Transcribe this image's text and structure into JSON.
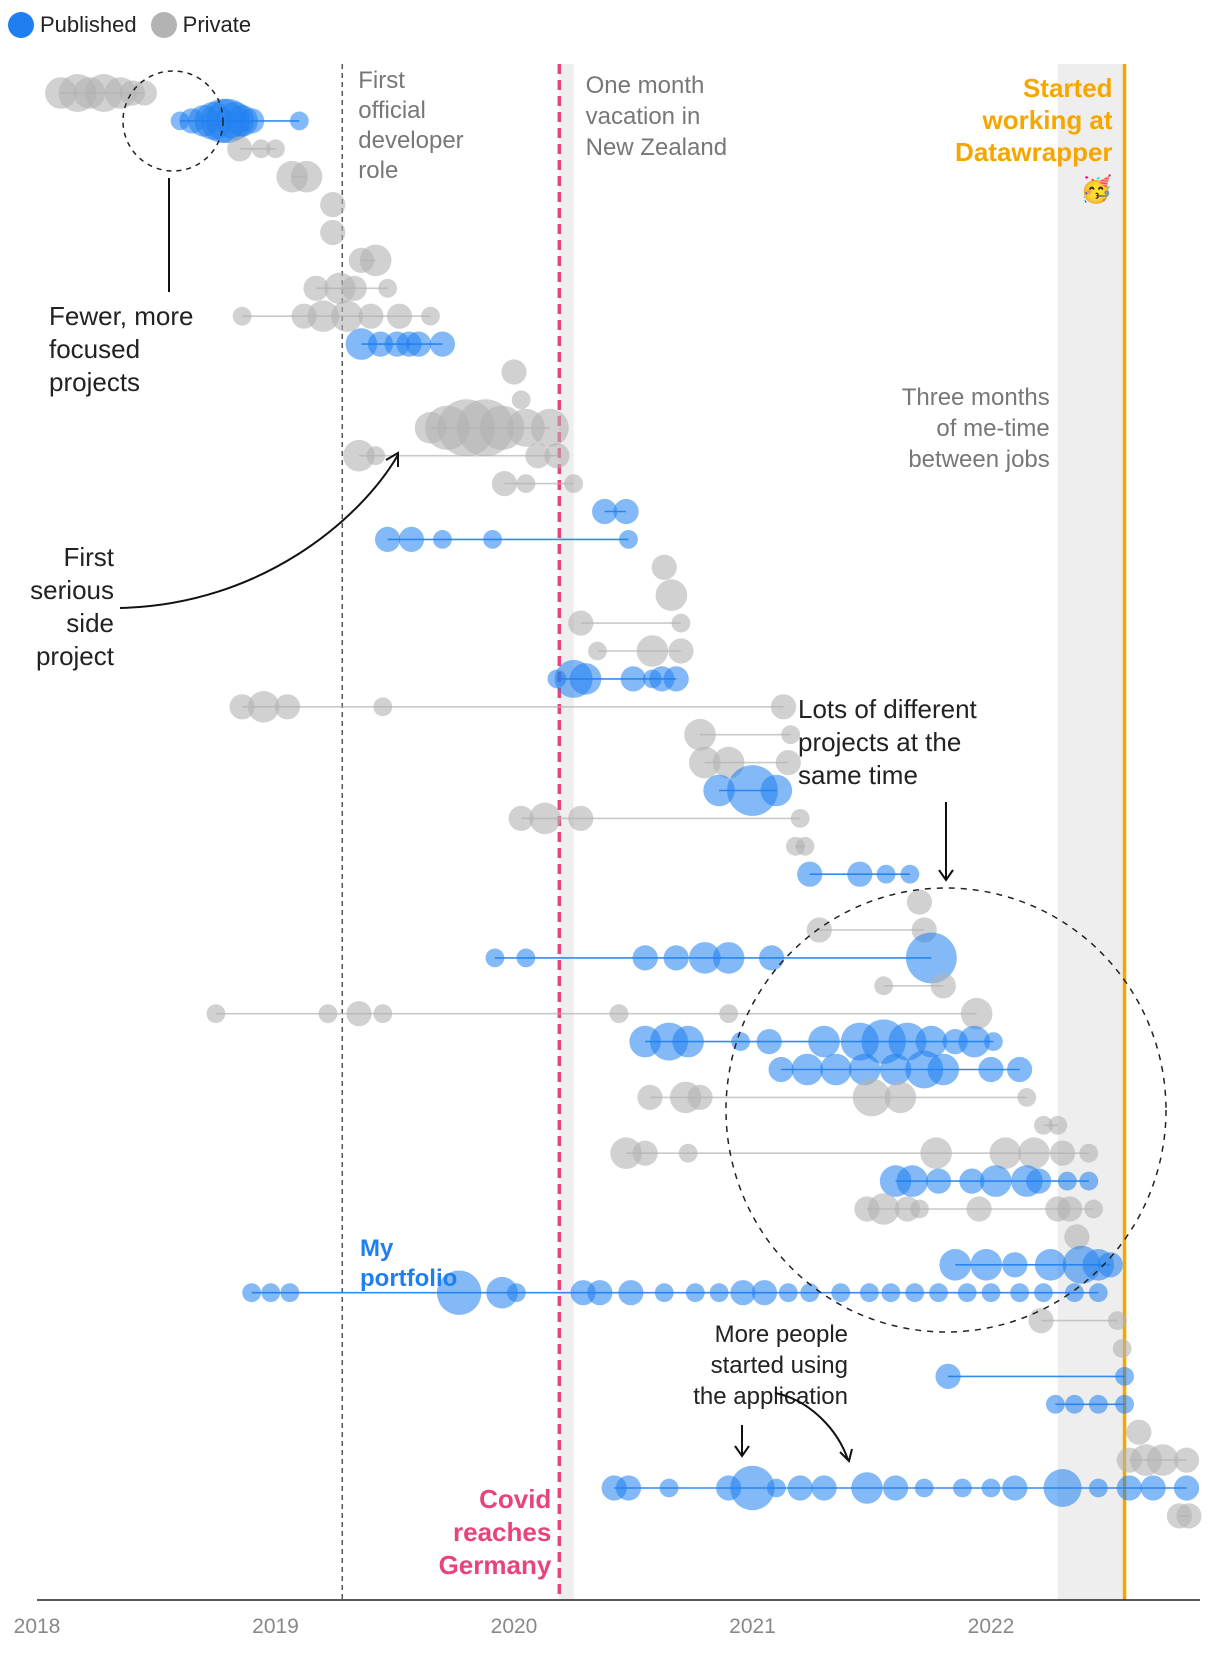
{
  "colors": {
    "published": "#1f7ff0",
    "private": "#b3b3b3",
    "covid": "#e8437a",
    "datawrapper": "#f7a600",
    "text_gray": "#777777",
    "text_dark": "#222222",
    "shade": "#eeeeee"
  },
  "legend": [
    {
      "label": "Published",
      "color": "#1f7ff0"
    },
    {
      "label": "Private",
      "color": "#b3b3b3"
    }
  ],
  "chart_data": {
    "type": "scatter",
    "x_ticks": [
      "2018",
      "2019",
      "2020",
      "2021",
      "2022"
    ],
    "x_range": [
      2018.0,
      2022.92
    ],
    "event_lines": [
      {
        "x": 2019.28,
        "style": "dashed-gray",
        "lines": [
          "First",
          "official",
          "developer",
          "role"
        ]
      },
      {
        "x": 2020.19,
        "style": "dashed-pink",
        "lines": [
          "Covid",
          "reaches",
          "Germany"
        ]
      },
      {
        "x": 2022.56,
        "style": "solid-orange",
        "lines": [
          "Started",
          "working at",
          "Datawrapper",
          "🥳"
        ]
      }
    ],
    "shaded_periods": [
      {
        "from": 2020.19,
        "to": 2020.25,
        "lines": [
          "One month",
          "vacation in",
          "New Zealand"
        ]
      },
      {
        "from": 2022.28,
        "to": 2022.56,
        "lines": [
          "Three months",
          "of me-time",
          "between jobs"
        ]
      }
    ],
    "annotations": [
      {
        "lines": [
          "Fewer, more",
          "focused",
          "projects"
        ]
      },
      {
        "lines": [
          "First",
          "serious",
          "side",
          "project"
        ]
      },
      {
        "lines": [
          "Lots of different",
          "projects at the",
          "same time"
        ]
      },
      {
        "lines": [
          "My",
          "portfolio"
        ]
      },
      {
        "lines": [
          "More people",
          "started using",
          "the application"
        ]
      }
    ],
    "projects": [
      {
        "type": "private",
        "x": [
          2018.1,
          2018.17,
          2018.22,
          2018.28,
          2018.35,
          2018.4,
          2018.45
        ],
        "s": [
          4,
          5,
          4,
          5,
          4,
          3,
          3
        ]
      },
      {
        "type": "published",
        "x": [
          2018.6,
          2018.65,
          2018.7,
          2018.74,
          2018.78,
          2018.8,
          2018.83,
          2018.86,
          2018.9,
          2019.1
        ],
        "s": [
          2,
          3,
          4,
          5,
          6,
          6,
          5,
          4,
          3,
          2
        ]
      },
      {
        "type": "private",
        "x": [
          2018.85,
          2018.94,
          2019.0
        ],
        "s": [
          3,
          2,
          2
        ]
      },
      {
        "type": "private",
        "x": [
          2019.07,
          2019.13
        ],
        "s": [
          4,
          4
        ]
      },
      {
        "type": "private",
        "x": [
          2019.24
        ],
        "s": [
          3
        ]
      },
      {
        "type": "private",
        "x": [
          2019.24
        ],
        "s": [
          3
        ]
      },
      {
        "type": "private",
        "x": [
          2019.36,
          2019.42
        ],
        "s": [
          3,
          4
        ]
      },
      {
        "type": "private",
        "x": [
          2019.17,
          2019.27,
          2019.33,
          2019.47
        ],
        "s": [
          3,
          4,
          3,
          2
        ]
      },
      {
        "type": "private",
        "x": [
          2018.86,
          2019.12,
          2019.2,
          2019.3,
          2019.4,
          2019.52,
          2019.65
        ],
        "s": [
          2,
          3,
          4,
          4,
          3,
          3,
          2
        ]
      },
      {
        "type": "published",
        "x": [
          2019.36,
          2019.44,
          2019.51,
          2019.56,
          2019.6,
          2019.7
        ],
        "s": [
          4,
          3,
          3,
          3,
          3,
          3
        ]
      },
      {
        "type": "private",
        "x": [
          2020.0
        ],
        "s": [
          3
        ]
      },
      {
        "type": "private",
        "x": [
          2020.03
        ],
        "s": [
          2
        ]
      },
      {
        "type": "private",
        "x": [
          2019.65,
          2019.72,
          2019.8,
          2019.88,
          2019.95,
          2020.05,
          2020.15
        ],
        "s": [
          4,
          6,
          8,
          8,
          6,
          5,
          5
        ]
      },
      {
        "type": "private",
        "x": [
          2019.35,
          2019.42,
          2020.1,
          2020.18
        ],
        "s": [
          4,
          2,
          3,
          3
        ]
      },
      {
        "type": "private",
        "x": [
          2019.96,
          2020.05,
          2020.25
        ],
        "s": [
          3,
          2,
          2
        ]
      },
      {
        "type": "published",
        "x": [
          2020.38,
          2020.47
        ],
        "s": [
          3,
          3
        ]
      },
      {
        "type": "published",
        "x": [
          2019.47,
          2019.57,
          2019.7,
          2019.91,
          2020.48
        ],
        "s": [
          3,
          3,
          2,
          2,
          2
        ]
      },
      {
        "type": "private",
        "x": [
          2020.63
        ],
        "s": [
          3
        ]
      },
      {
        "type": "private",
        "x": [
          2020.66
        ],
        "s": [
          4
        ]
      },
      {
        "type": "private",
        "x": [
          2020.28,
          2020.7
        ],
        "s": [
          3,
          2
        ]
      },
      {
        "type": "private",
        "x": [
          2020.35,
          2020.58,
          2020.7
        ],
        "s": [
          2,
          4,
          3
        ]
      },
      {
        "type": "published",
        "x": [
          2020.18,
          2020.25,
          2020.3,
          2020.5,
          2020.58,
          2020.62,
          2020.68
        ],
        "s": [
          2,
          5,
          4,
          3,
          2,
          3,
          3
        ]
      },
      {
        "type": "private",
        "x": [
          2018.86,
          2018.95,
          2019.05,
          2019.45,
          2021.13
        ],
        "s": [
          3,
          4,
          3,
          2,
          3
        ]
      },
      {
        "type": "private",
        "x": [
          2020.78,
          2021.16
        ],
        "s": [
          4,
          2
        ]
      },
      {
        "type": "private",
        "x": [
          2020.8,
          2020.9,
          2021.15
        ],
        "s": [
          4,
          4,
          3
        ]
      },
      {
        "type": "published",
        "x": [
          2020.86,
          2021.0,
          2021.1
        ],
        "s": [
          4,
          7,
          4
        ]
      },
      {
        "type": "private",
        "x": [
          2020.03,
          2020.13,
          2020.28,
          2021.2
        ],
        "s": [
          3,
          4,
          3,
          2
        ]
      },
      {
        "type": "private",
        "x": [
          2021.18,
          2021.22
        ],
        "s": [
          2,
          2
        ]
      },
      {
        "type": "published",
        "x": [
          2021.24,
          2021.45,
          2021.56,
          2021.66
        ],
        "s": [
          3,
          3,
          2,
          2
        ]
      },
      {
        "type": "private",
        "x": [
          2021.7
        ],
        "s": [
          3
        ]
      },
      {
        "type": "private",
        "x": [
          2021.28,
          2021.72
        ],
        "s": [
          3,
          3
        ]
      },
      {
        "type": "published",
        "x": [
          2019.92,
          2020.05,
          2020.55,
          2020.68,
          2020.8,
          2020.9,
          2021.08,
          2021.75
        ],
        "s": [
          2,
          2,
          3,
          3,
          4,
          4,
          3,
          7
        ]
      },
      {
        "type": "private",
        "x": [
          2021.55,
          2021.8
        ],
        "s": [
          2,
          3
        ]
      },
      {
        "type": "private",
        "x": [
          2018.75,
          2019.22,
          2019.35,
          2019.45,
          2020.44,
          2020.9,
          2021.94
        ],
        "s": [
          2,
          2,
          3,
          2,
          2,
          2,
          4
        ]
      },
      {
        "type": "published",
        "x": [
          2020.55,
          2020.65,
          2020.73,
          2020.95,
          2021.07,
          2021.3,
          2021.45,
          2021.55,
          2021.65,
          2021.75,
          2021.85,
          2021.93,
          2022.01
        ],
        "s": [
          4,
          5,
          4,
          2,
          3,
          4,
          5,
          6,
          5,
          4,
          3,
          4,
          2
        ]
      },
      {
        "type": "published",
        "x": [
          2021.12,
          2021.23,
          2021.35,
          2021.47,
          2021.6,
          2021.72,
          2021.8,
          2022.0,
          2022.12
        ],
        "s": [
          3,
          4,
          4,
          4,
          4,
          5,
          4,
          3,
          3
        ]
      },
      {
        "type": "private",
        "x": [
          2020.57,
          2020.72,
          2020.78,
          2021.5,
          2021.62,
          2022.15
        ],
        "s": [
          3,
          4,
          3,
          5,
          4,
          2
        ]
      },
      {
        "type": "private",
        "x": [
          2022.22,
          2022.28
        ],
        "s": [
          2,
          2
        ]
      },
      {
        "type": "private",
        "x": [
          2020.47,
          2020.55,
          2020.73,
          2021.77,
          2022.06,
          2022.18,
          2022.3,
          2022.41
        ],
        "s": [
          4,
          3,
          2,
          4,
          4,
          4,
          3,
          2
        ]
      },
      {
        "type": "published",
        "x": [
          2021.6,
          2021.67,
          2021.78,
          2021.92,
          2022.02,
          2022.15,
          2022.2,
          2022.32,
          2022.41
        ],
        "s": [
          4,
          4,
          3,
          3,
          4,
          4,
          3,
          2,
          2
        ]
      },
      {
        "type": "private",
        "x": [
          2021.48,
          2021.55,
          2021.65,
          2021.7,
          2021.95,
          2022.28,
          2022.33,
          2022.43
        ],
        "s": [
          3,
          4,
          3,
          2,
          3,
          3,
          3,
          2
        ]
      },
      {
        "type": "private",
        "x": [
          2022.36
        ],
        "s": [
          3
        ]
      },
      {
        "type": "published",
        "x": [
          2021.85,
          2021.98,
          2022.1,
          2022.25,
          2022.38,
          2022.45,
          2022.5
        ],
        "s": [
          4,
          4,
          3,
          4,
          5,
          4,
          3
        ]
      },
      {
        "type": "published",
        "x": [
          2018.9,
          2018.98,
          2019.06,
          2019.77,
          2019.95,
          2020.01,
          2020.29,
          2020.36,
          2020.49,
          2020.63,
          2020.76,
          2020.86,
          2020.96,
          2021.05,
          2021.15,
          2021.24,
          2021.37,
          2021.49,
          2021.58,
          2021.68,
          2021.78,
          2021.9,
          2022.0,
          2022.12,
          2022.22,
          2022.35,
          2022.45
        ],
        "s": [
          2,
          2,
          2,
          6,
          4,
          2,
          3,
          3,
          3,
          2,
          2,
          2,
          3,
          3,
          2,
          2,
          2,
          2,
          2,
          2,
          2,
          2,
          2,
          2,
          2,
          2,
          2
        ]
      },
      {
        "type": "private",
        "x": [
          2022.21,
          2022.53
        ],
        "s": [
          3,
          2
        ]
      },
      {
        "type": "private",
        "x": [
          2022.55
        ],
        "s": [
          2
        ]
      },
      {
        "type": "published",
        "x": [
          2021.82,
          2022.56
        ],
        "s": [
          3,
          2
        ]
      },
      {
        "type": "published",
        "x": [
          2022.27,
          2022.35,
          2022.45,
          2022.56
        ],
        "s": [
          2,
          2,
          2,
          2
        ]
      },
      {
        "type": "private",
        "x": [
          2022.62
        ],
        "s": [
          3
        ]
      },
      {
        "type": "private",
        "x": [
          2022.58,
          2022.65,
          2022.72,
          2022.82
        ],
        "s": [
          3,
          4,
          4,
          3
        ]
      },
      {
        "type": "published",
        "x": [
          2020.42,
          2020.48,
          2020.65,
          2020.9,
          2021.0,
          2021.1,
          2021.2,
          2021.3,
          2021.48,
          2021.6,
          2021.72,
          2021.88,
          2022.0,
          2022.1,
          2022.3,
          2022.45,
          2022.58,
          2022.68,
          2022.82
        ],
        "s": [
          3,
          3,
          2,
          3,
          6,
          2,
          3,
          3,
          4,
          3,
          2,
          2,
          2,
          3,
          5,
          2,
          3,
          3,
          3
        ]
      },
      {
        "type": "private",
        "x": [
          2022.79,
          2022.83
        ],
        "s": [
          3,
          3
        ]
      }
    ]
  }
}
